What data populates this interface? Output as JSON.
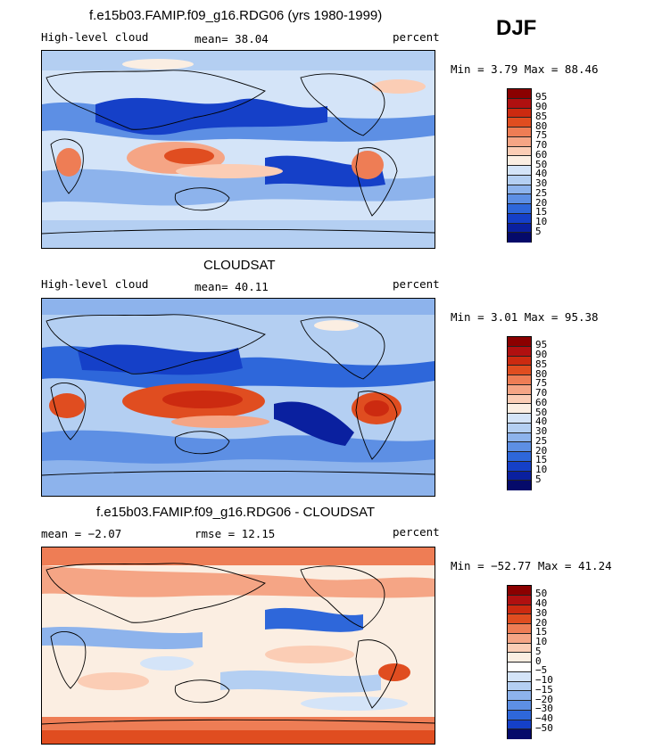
{
  "season": "DJF",
  "panels": [
    {
      "title": "f.e15b03.FAMIP.f09_g16.RDG06 (yrs 1980-1999)",
      "left_label": "High-level cloud",
      "mean_label": "mean=  38.04",
      "units": "percent",
      "minmax": "Min =   3.79 Max =  88.46",
      "levels": [
        "95",
        "90",
        "85",
        "80",
        "75",
        "70",
        "60",
        "50",
        "40",
        "30",
        "25",
        "20",
        "15",
        "10",
        "5"
      ],
      "colors": [
        "#8b0000",
        "#b01010",
        "#cc2a10",
        "#e04d20",
        "#ee7d55",
        "#f5a585",
        "#fbcdb5",
        "#fbeee2",
        "#d4e4f8",
        "#b4cff2",
        "#8db3ec",
        "#5d8fe4",
        "#2e67da",
        "#1540c8",
        "#0a209f",
        "#050a6a"
      ]
    },
    {
      "title": "CLOUDSAT",
      "left_label": "High-level cloud",
      "mean_label": "mean=  40.11",
      "units": "percent",
      "minmax": "Min =   3.01 Max =  95.38",
      "levels": [
        "95",
        "90",
        "85",
        "80",
        "75",
        "70",
        "60",
        "50",
        "40",
        "30",
        "25",
        "20",
        "15",
        "10",
        "5"
      ],
      "colors": [
        "#8b0000",
        "#b01010",
        "#cc2a10",
        "#e04d20",
        "#ee7d55",
        "#f5a585",
        "#fbcdb5",
        "#fbeee2",
        "#d4e4f8",
        "#b4cff2",
        "#8db3ec",
        "#5d8fe4",
        "#2e67da",
        "#1540c8",
        "#0a209f",
        "#050a6a"
      ]
    },
    {
      "title": "f.e15b03.FAMIP.f09_g16.RDG06 - CLOUDSAT",
      "left_label": "mean =  −2.07",
      "mean_label": "rmse =  12.15",
      "units": "percent",
      "minmax": "Min = −52.77 Max =  41.24",
      "levels": [
        "50",
        "40",
        "30",
        "20",
        "15",
        "10",
        "5",
        "0",
        "−5",
        "−10",
        "−15",
        "−20",
        "−30",
        "−40",
        "−50"
      ],
      "colors": [
        "#8b0000",
        "#b01010",
        "#cc2a10",
        "#e04d20",
        "#ee7d55",
        "#f5a585",
        "#fbcdb5",
        "#fbeee2",
        "#ffffff",
        "#d4e4f8",
        "#b4cff2",
        "#8db3ec",
        "#5d8fe4",
        "#2e67da",
        "#1540c8",
        "#050a6a"
      ]
    }
  ]
}
